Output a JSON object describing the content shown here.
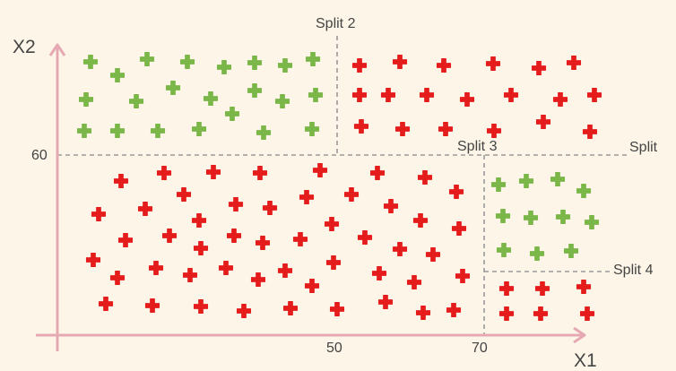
{
  "colors": {
    "background": "#fdf6e8",
    "axis": "#e6a9b3",
    "split_line": "#9a9a9a",
    "class_green": "#7ab648",
    "class_red": "#e41c1c",
    "text": "#444444"
  },
  "axes": {
    "x_label": "X1",
    "y_label": "X2",
    "x_ticks": [
      "50",
      "70"
    ],
    "y_ticks": [
      "60"
    ]
  },
  "splits": {
    "split_main": "Split",
    "split_2": "Split 2",
    "split_3": "Split 3",
    "split_4": "Split 4"
  },
  "legend_icons": {
    "marker": "plus-icon"
  }
}
